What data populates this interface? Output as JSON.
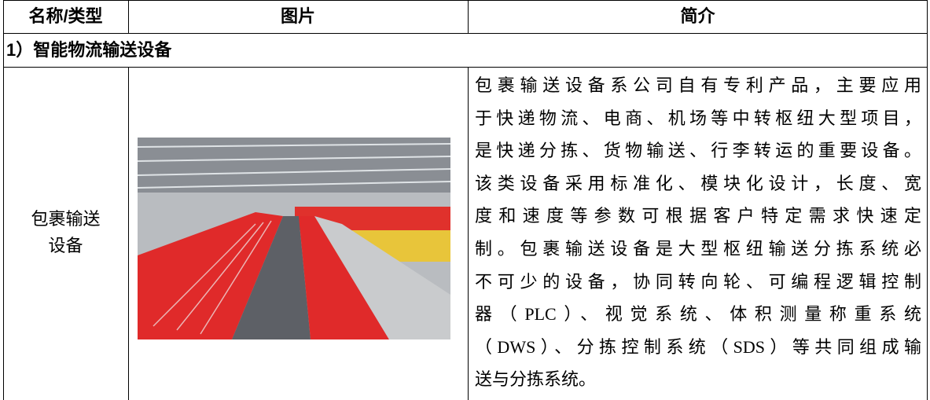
{
  "table": {
    "header": [
      "名称/类型",
      "图片",
      "简介"
    ],
    "section": "1）智能物流输送设备",
    "rows": [
      {
        "name_lines": [
          "包裹输送",
          "设备"
        ],
        "description_lines": [
          "包裹输送设备系公司自有专利产品，主要应用",
          "于快递物流、电商、机场等中转枢纽大型项目，",
          "是快递分拣、货物输送、行李转运的重要设备。",
          "该类设备采用标准化、模块化设计，长度、宽",
          "度和速度等参数可根据客户特定需求快速定",
          "制。包裹输送设备是大型枢纽输送分拣系统必",
          "不可少的设备，协同转向轮、可编程逻辑控制",
          "器（PLC）、视觉系统、体积测量称重系统",
          "（DWS）、分拣控制系统（SDS）等共同组成输",
          "送与分拣系统。"
        ]
      }
    ]
  }
}
